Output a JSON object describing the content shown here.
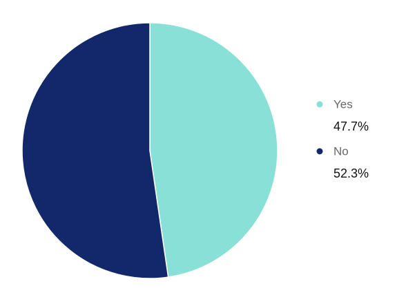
{
  "chart_data": {
    "type": "pie",
    "categories": [
      "Yes",
      "No"
    ],
    "values": [
      47.7,
      52.3
    ],
    "value_labels": [
      "47.7%",
      "52.3%"
    ],
    "colors": [
      "#88e0d6",
      "#13286b"
    ],
    "legend": "right"
  }
}
